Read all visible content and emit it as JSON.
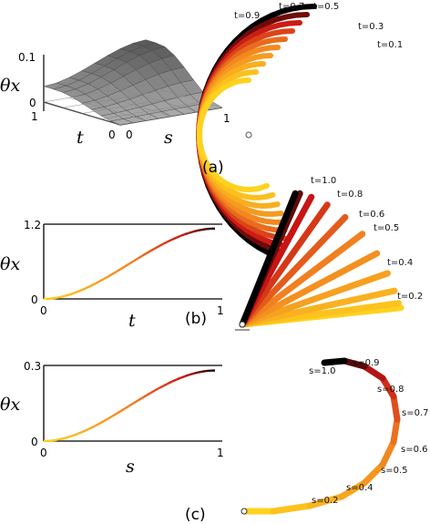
{
  "panels": {
    "a": {
      "label": "(a)",
      "ylabel": "θx",
      "xlabel_t": "t",
      "xlabel_s": "s",
      "zticks": [
        "0",
        "0.1"
      ],
      "t_ticks": [
        "1",
        "0"
      ],
      "s_ticks": [
        "0",
        "1"
      ],
      "annotations": [
        "t=0.9",
        "t=0.7",
        "t=0.5",
        "t=0.3",
        "t=0.1"
      ]
    },
    "b": {
      "label": "(b)",
      "ylabel": "θx",
      "xlabel": "t",
      "yticks": [
        "0",
        "1.2"
      ],
      "xticks": [
        "0",
        "1"
      ],
      "annotations": [
        "t=1.0",
        "t=0.8",
        "t=0.6",
        "t=0.5",
        "t=0.4",
        "t=0.2"
      ]
    },
    "c": {
      "label": "(c)",
      "ylabel": "θx",
      "xlabel": "s",
      "yticks": [
        "0",
        "0.3"
      ],
      "xticks": [
        "0",
        "1"
      ],
      "annotations": [
        "s=0.9",
        "s=1.0",
        "s=0.8",
        "s=0.7",
        "s=0.6",
        "s=0.5",
        "s=0.4",
        "s=0.2"
      ]
    }
  },
  "colors": {
    "low": "#ffd21e",
    "mid": "#f08020",
    "high": "#c81414",
    "end": "#000000",
    "surface": "#8a8a8a"
  }
}
